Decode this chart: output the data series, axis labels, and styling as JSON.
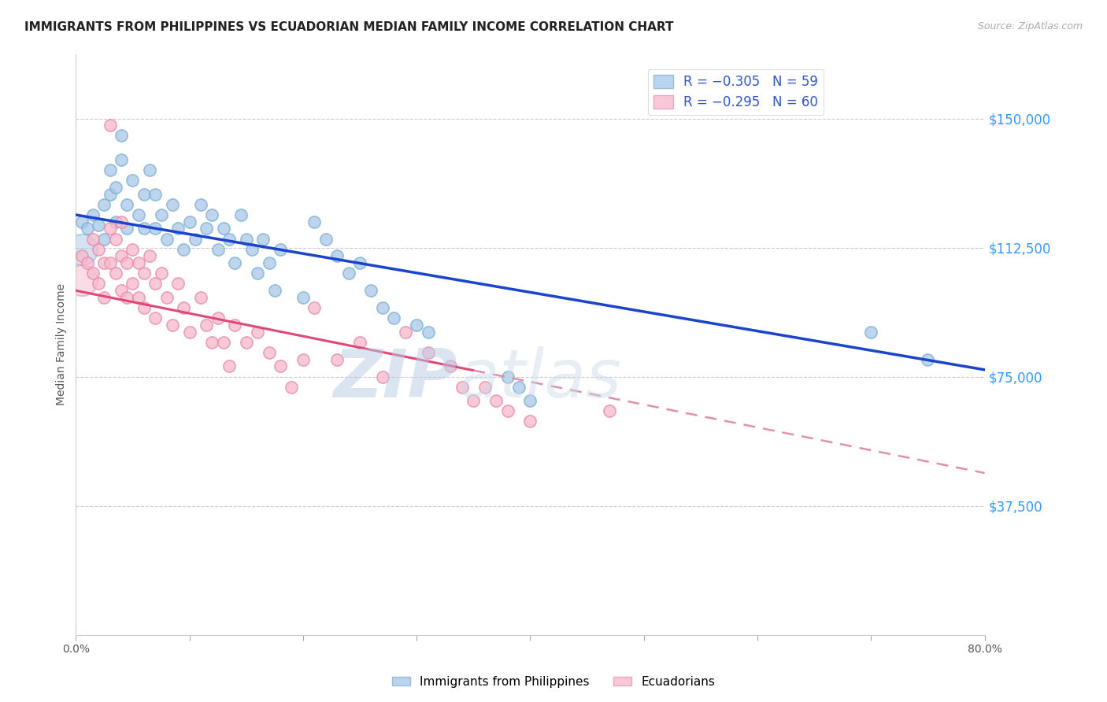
{
  "title": "IMMIGRANTS FROM PHILIPPINES VS ECUADORIAN MEDIAN FAMILY INCOME CORRELATION CHART",
  "source": "Source: ZipAtlas.com",
  "ylabel": "Median Family Income",
  "xlim": [
    0.0,
    0.8
  ],
  "ylim": [
    0,
    168750
  ],
  "yticks": [
    37500,
    75000,
    112500,
    150000
  ],
  "ytick_labels": [
    "$37,500",
    "$75,000",
    "$112,500",
    "$150,000"
  ],
  "xticks": [
    0.0,
    0.1,
    0.2,
    0.3,
    0.4,
    0.5,
    0.6,
    0.7,
    0.8
  ],
  "xtick_labels_show": [
    "0.0%",
    "",
    "",
    "",
    "",
    "",
    "",
    "",
    "80.0%"
  ],
  "legend_line1": "R = −0.305   N = 59",
  "legend_line2": "R = −0.295   N = 60",
  "legend_labels": [
    "Immigrants from Philippines",
    "Ecuadorians"
  ],
  "blue_color": "#a8c8e8",
  "blue_edge_color": "#7bafd4",
  "pink_color": "#f8b8cc",
  "pink_edge_color": "#e888a8",
  "blue_line_color": "#1a44cc",
  "pink_line_color": "#e04878",
  "pink_dash_color": "#e090a8",
  "title_fontsize": 11,
  "axis_label_fontsize": 10,
  "tick_fontsize": 10,
  "blue_scatter": [
    [
      0.005,
      120000
    ],
    [
      0.01,
      118000
    ],
    [
      0.015,
      122000
    ],
    [
      0.02,
      119000
    ],
    [
      0.025,
      125000
    ],
    [
      0.025,
      115000
    ],
    [
      0.03,
      135000
    ],
    [
      0.03,
      128000
    ],
    [
      0.035,
      130000
    ],
    [
      0.035,
      120000
    ],
    [
      0.04,
      145000
    ],
    [
      0.04,
      138000
    ],
    [
      0.045,
      125000
    ],
    [
      0.045,
      118000
    ],
    [
      0.05,
      132000
    ],
    [
      0.055,
      122000
    ],
    [
      0.06,
      128000
    ],
    [
      0.06,
      118000
    ],
    [
      0.065,
      135000
    ],
    [
      0.07,
      128000
    ],
    [
      0.07,
      118000
    ],
    [
      0.075,
      122000
    ],
    [
      0.08,
      115000
    ],
    [
      0.085,
      125000
    ],
    [
      0.09,
      118000
    ],
    [
      0.095,
      112000
    ],
    [
      0.1,
      120000
    ],
    [
      0.105,
      115000
    ],
    [
      0.11,
      125000
    ],
    [
      0.115,
      118000
    ],
    [
      0.12,
      122000
    ],
    [
      0.125,
      112000
    ],
    [
      0.13,
      118000
    ],
    [
      0.135,
      115000
    ],
    [
      0.14,
      108000
    ],
    [
      0.145,
      122000
    ],
    [
      0.15,
      115000
    ],
    [
      0.155,
      112000
    ],
    [
      0.16,
      105000
    ],
    [
      0.165,
      115000
    ],
    [
      0.17,
      108000
    ],
    [
      0.175,
      100000
    ],
    [
      0.18,
      112000
    ],
    [
      0.2,
      98000
    ],
    [
      0.21,
      120000
    ],
    [
      0.22,
      115000
    ],
    [
      0.23,
      110000
    ],
    [
      0.24,
      105000
    ],
    [
      0.25,
      108000
    ],
    [
      0.26,
      100000
    ],
    [
      0.27,
      95000
    ],
    [
      0.28,
      92000
    ],
    [
      0.3,
      90000
    ],
    [
      0.31,
      88000
    ],
    [
      0.38,
      75000
    ],
    [
      0.39,
      72000
    ],
    [
      0.4,
      68000
    ],
    [
      0.7,
      88000
    ],
    [
      0.75,
      80000
    ]
  ],
  "pink_scatter": [
    [
      0.005,
      110000
    ],
    [
      0.01,
      108000
    ],
    [
      0.015,
      115000
    ],
    [
      0.015,
      105000
    ],
    [
      0.02,
      112000
    ],
    [
      0.02,
      102000
    ],
    [
      0.025,
      108000
    ],
    [
      0.025,
      98000
    ],
    [
      0.03,
      148000
    ],
    [
      0.03,
      118000
    ],
    [
      0.03,
      108000
    ],
    [
      0.035,
      115000
    ],
    [
      0.035,
      105000
    ],
    [
      0.04,
      120000
    ],
    [
      0.04,
      110000
    ],
    [
      0.04,
      100000
    ],
    [
      0.045,
      108000
    ],
    [
      0.045,
      98000
    ],
    [
      0.05,
      112000
    ],
    [
      0.05,
      102000
    ],
    [
      0.055,
      108000
    ],
    [
      0.055,
      98000
    ],
    [
      0.06,
      105000
    ],
    [
      0.06,
      95000
    ],
    [
      0.065,
      110000
    ],
    [
      0.07,
      102000
    ],
    [
      0.07,
      92000
    ],
    [
      0.075,
      105000
    ],
    [
      0.08,
      98000
    ],
    [
      0.085,
      90000
    ],
    [
      0.09,
      102000
    ],
    [
      0.095,
      95000
    ],
    [
      0.1,
      88000
    ],
    [
      0.11,
      98000
    ],
    [
      0.115,
      90000
    ],
    [
      0.12,
      85000
    ],
    [
      0.125,
      92000
    ],
    [
      0.13,
      85000
    ],
    [
      0.135,
      78000
    ],
    [
      0.14,
      90000
    ],
    [
      0.15,
      85000
    ],
    [
      0.16,
      88000
    ],
    [
      0.17,
      82000
    ],
    [
      0.18,
      78000
    ],
    [
      0.19,
      72000
    ],
    [
      0.2,
      80000
    ],
    [
      0.21,
      95000
    ],
    [
      0.23,
      80000
    ],
    [
      0.25,
      85000
    ],
    [
      0.27,
      75000
    ],
    [
      0.29,
      88000
    ],
    [
      0.31,
      82000
    ],
    [
      0.33,
      78000
    ],
    [
      0.34,
      72000
    ],
    [
      0.35,
      68000
    ],
    [
      0.36,
      72000
    ],
    [
      0.37,
      68000
    ],
    [
      0.38,
      65000
    ],
    [
      0.4,
      62000
    ],
    [
      0.47,
      65000
    ]
  ],
  "background_color": "#ffffff",
  "grid_color": "#cccccc",
  "watermark_text": "ZIP",
  "watermark_text2": "atlas",
  "watermark_color": "#d0dff0"
}
